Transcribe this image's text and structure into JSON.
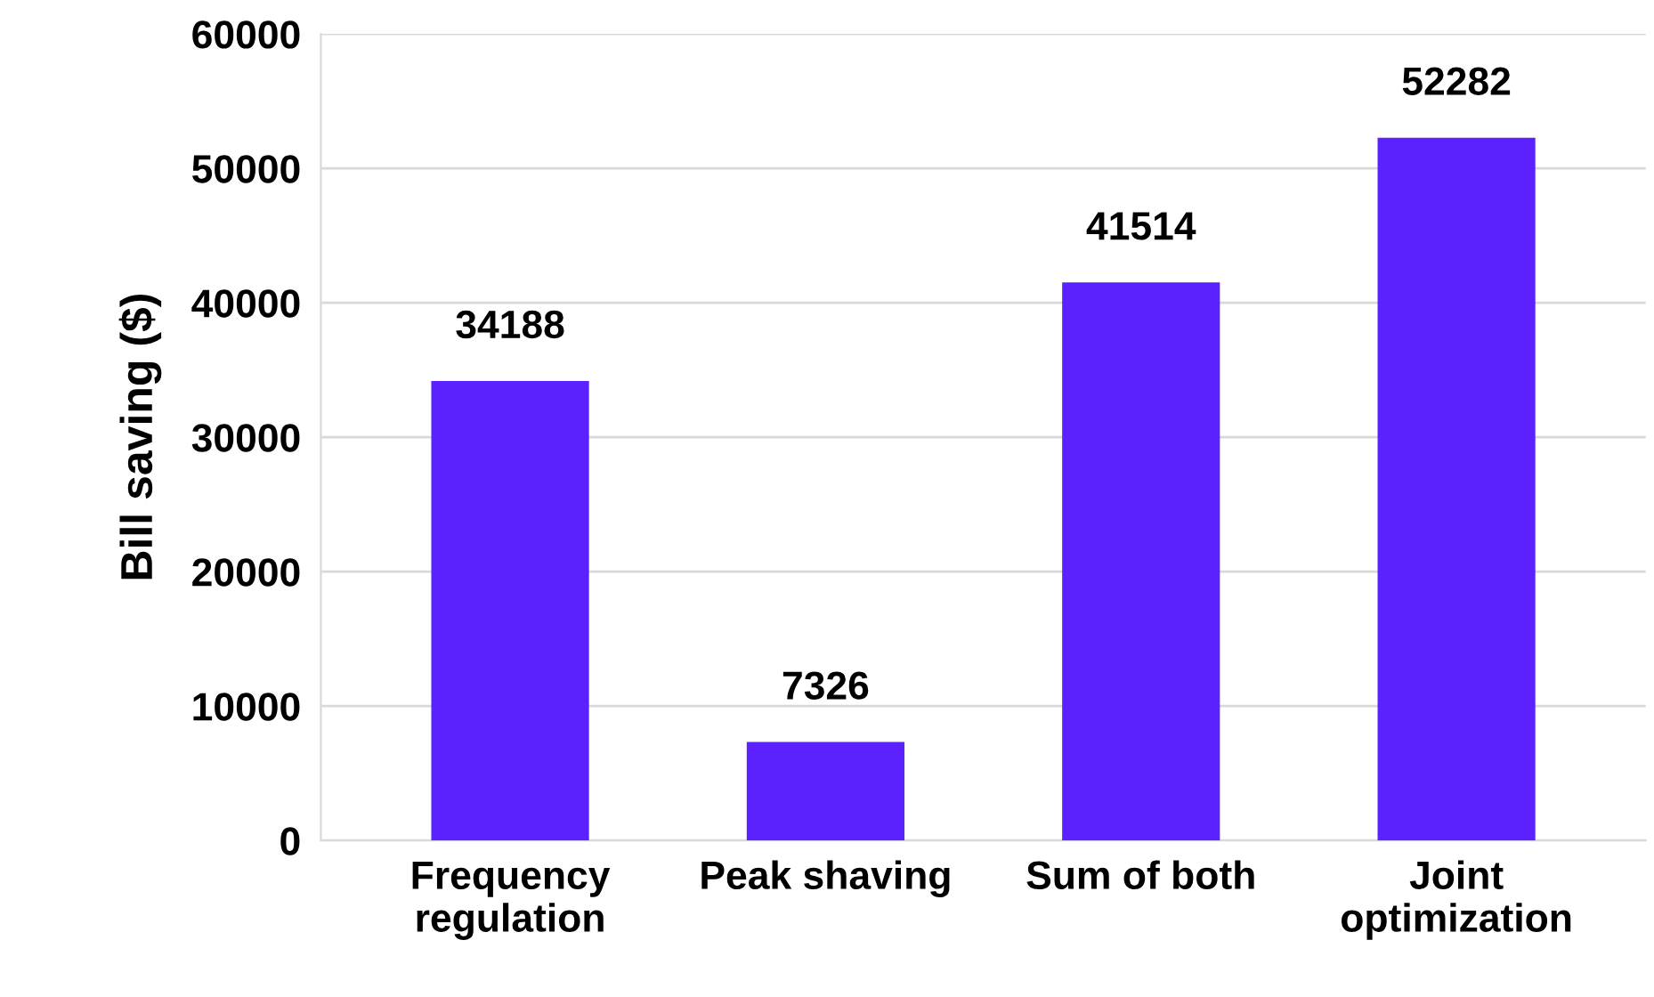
{
  "chart_data": {
    "type": "bar",
    "ylabel": "Bill saving ($)",
    "categories": [
      "Frequency\nregulation",
      "Peak shaving",
      "Sum of both",
      "Joint\noptimization"
    ],
    "values": [
      34188,
      7326,
      41514,
      52282
    ],
    "color": "#5b21ff",
    "ylim": [
      0,
      60000
    ],
    "yticks": [
      0,
      10000,
      20000,
      30000,
      40000,
      50000,
      60000
    ],
    "grid": "y",
    "data_labels": true,
    "legend": false
  }
}
